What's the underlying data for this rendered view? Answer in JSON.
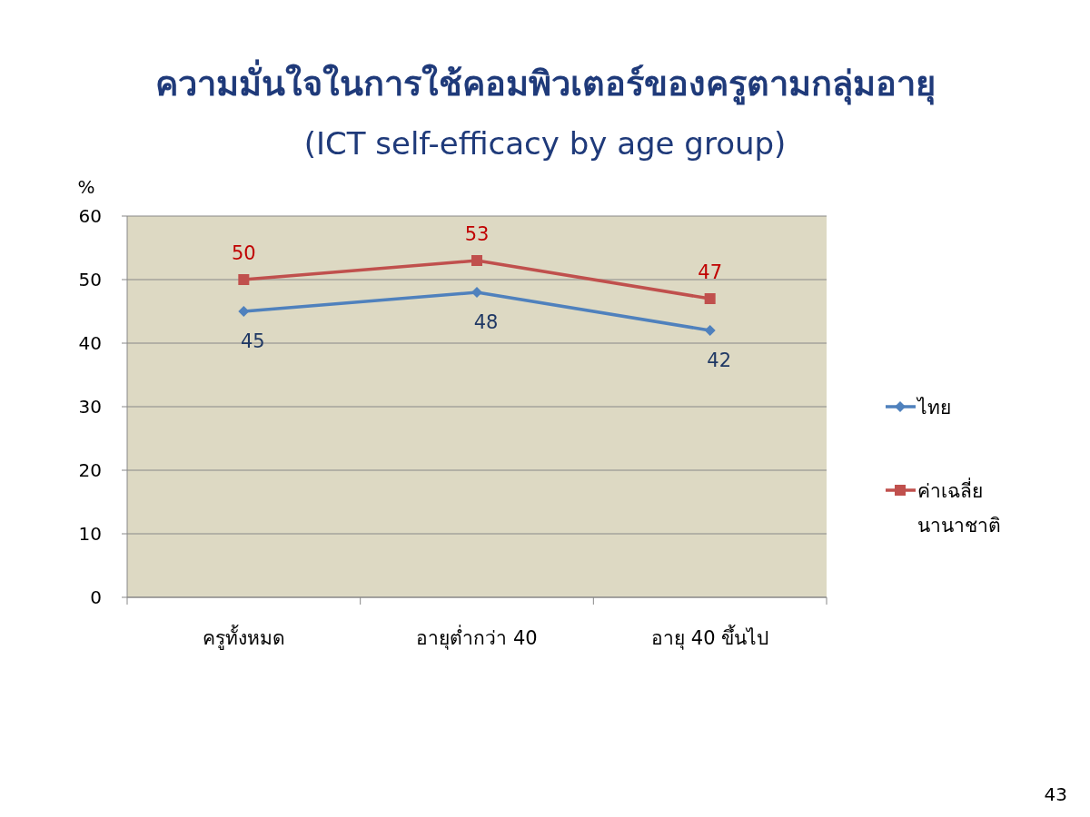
{
  "chart_data": {
    "type": "line",
    "title": "ความมั่นใจในการใช้คอมพิวเตอร์ของครูตามกลุ่มอายุ",
    "subtitle": "(ICT self-efficacy by age group)",
    "ylabel": "%",
    "categories": [
      "ครูทั้งหมด",
      "อายุต่ำกว่า 40",
      "อายุ 40 ขึ้นไป"
    ],
    "series": [
      {
        "name": "ไทย",
        "color": "#4f81bd",
        "marker": "diamond",
        "values": [
          45,
          48,
          42
        ]
      },
      {
        "name": "ค่าเฉลี่ยนานาชาติ",
        "color": "#c0504d",
        "marker": "square",
        "values": [
          50,
          53,
          47
        ]
      }
    ],
    "ylim": [
      0,
      60
    ],
    "yticks": [
      0,
      10,
      20,
      30,
      40,
      50,
      60
    ],
    "grid": "y",
    "legend": "right",
    "data_labels": true,
    "annotations": [
      "43"
    ]
  }
}
